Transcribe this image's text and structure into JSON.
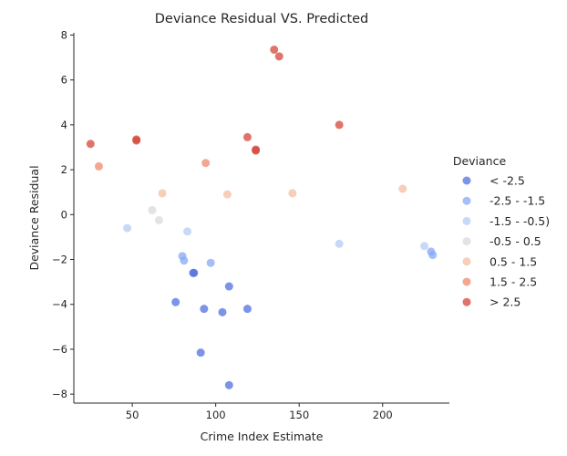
{
  "chart_data": {
    "type": "scatter",
    "title": "Deviance Residual VS. Predicted",
    "xlabel": "Crime Index Estimate",
    "ylabel": "Deviance Residual",
    "xlim": [
      15,
      240
    ],
    "ylim": [
      -8.4,
      8.1
    ],
    "xticks": [
      50,
      100,
      150,
      200
    ],
    "yticks": [
      -8,
      -6,
      -4,
      -2,
      0,
      2,
      4,
      6,
      8
    ],
    "grid": false,
    "legend": {
      "title": "Deviance",
      "placement": "right"
    },
    "series": [
      {
        "name": "< -2.5",
        "color": "#4f6fe0",
        "points": [
          [
            76,
            -3.9
          ],
          [
            86.5,
            -2.6
          ],
          [
            87,
            -2.6
          ],
          [
            91,
            -6.15
          ],
          [
            93,
            -4.2
          ],
          [
            104,
            -4.35
          ],
          [
            108,
            -3.2
          ],
          [
            108,
            -7.6
          ],
          [
            119,
            -4.2
          ]
        ]
      },
      {
        "name": "-2.5 - -1.5",
        "color": "#86a8f5",
        "points": [
          [
            80,
            -1.85
          ],
          [
            81,
            -2.05
          ],
          [
            97,
            -2.15
          ],
          [
            229,
            -1.65
          ],
          [
            230,
            -1.8
          ]
        ]
      },
      {
        "name": "-1.5 - -0.5)",
        "color": "#b6ccf6",
        "points": [
          [
            47,
            -0.6
          ],
          [
            83,
            -0.75
          ],
          [
            174,
            -1.3
          ],
          [
            225,
            -1.4
          ]
        ]
      },
      {
        "name": "-0.5 - 0.5",
        "color": "#d9d9d9",
        "points": [
          [
            62,
            0.2
          ],
          [
            66,
            -0.25
          ]
        ]
      },
      {
        "name": "0.5 - 1.5",
        "color": "#f4bea3",
        "points": [
          [
            68,
            0.95
          ],
          [
            107,
            0.9
          ],
          [
            146,
            0.95
          ],
          [
            212,
            1.15
          ]
        ]
      },
      {
        "name": "1.5 - 2.5",
        "color": "#ef8a6c",
        "points": [
          [
            30,
            2.15
          ],
          [
            94,
            2.3
          ]
        ]
      },
      {
        "name": "> 2.5",
        "color": "#d6463a",
        "points": [
          [
            25,
            3.15
          ],
          [
            52.5,
            3.3
          ],
          [
            52.5,
            3.35
          ],
          [
            119,
            3.45
          ],
          [
            124,
            2.9
          ],
          [
            124,
            2.85
          ],
          [
            135,
            7.35
          ],
          [
            138,
            7.05
          ],
          [
            174,
            4.0
          ]
        ]
      }
    ]
  }
}
